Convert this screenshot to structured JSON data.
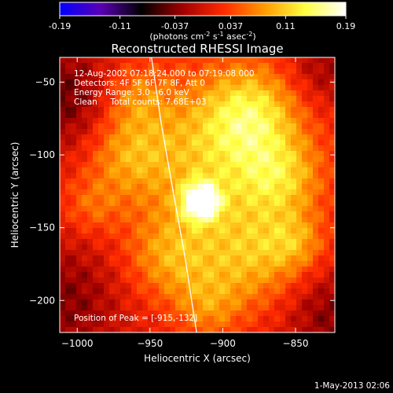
{
  "colorbar": {
    "min": -0.19,
    "max": 0.19,
    "ticks": [
      {
        "value": -0.19,
        "label": "-0.19"
      },
      {
        "value": -0.11,
        "label": "-0.11"
      },
      {
        "value": -0.037,
        "label": "-0.037"
      },
      {
        "value": 0.037,
        "label": "0.037"
      },
      {
        "value": 0.11,
        "label": "0.11"
      },
      {
        "value": 0.19,
        "label": "0.19"
      }
    ],
    "units_prefix": "(photons cm",
    "units_exp1": "-2",
    "units_mid1": " s",
    "units_exp2": "-1",
    "units_mid2": " asec",
    "units_exp3": "-2",
    "units_suffix": ")",
    "colors": [
      "#0000ff",
      "#5a00b4",
      "#000000",
      "#a00000",
      "#ff2a00",
      "#ff9a00",
      "#ffff40",
      "#ffffff"
    ]
  },
  "chart_data": {
    "type": "heatmap",
    "title": "Reconstructed RHESSI Image",
    "xlabel": "Heliocentric X (arcsec)",
    "ylabel": "Heliocentric Y (arcsec)",
    "xlim": [
      -1012,
      -823
    ],
    "ylim": [
      -222,
      -33
    ],
    "xticks": [
      {
        "value": -1000,
        "label": "−1000"
      },
      {
        "value": -950,
        "label": "−950"
      },
      {
        "value": -900,
        "label": "−900"
      },
      {
        "value": -850,
        "label": "−850"
      }
    ],
    "yticks": [
      {
        "value": -50,
        "label": "−50"
      },
      {
        "value": -100,
        "label": "−100"
      },
      {
        "value": -150,
        "label": "−150"
      },
      {
        "value": -200,
        "label": "−200"
      }
    ],
    "annotations": [
      "12-Aug-2002 07:18:24.000 to 07:19:08.000",
      "Detectors: 4F 5F 6F 7F 8F, Att 0",
      "Energy Range: 3.0 - 6.0 keV",
      "Clean     Total counts: 7.68E+03"
    ],
    "peak_label": "Position of Peak = [-915,-132]",
    "peak": {
      "x": -915,
      "y": -132
    },
    "limb_curve": [
      [
        -949,
        -33
      ],
      [
        -942,
        -80
      ],
      [
        -935,
        -120
      ],
      [
        -926,
        -170
      ],
      [
        -918,
        -222
      ]
    ],
    "sources": [
      {
        "x": -915,
        "y": -132,
        "sigma": 9,
        "amp": 0.17
      },
      {
        "x": -905,
        "y": -100,
        "sigma": 38,
        "amp": 0.09
      },
      {
        "x": -880,
        "y": -70,
        "sigma": 22,
        "amp": 0.08
      },
      {
        "x": -860,
        "y": -115,
        "sigma": 20,
        "amp": 0.07
      },
      {
        "x": -880,
        "y": -170,
        "sigma": 25,
        "amp": 0.075
      },
      {
        "x": -935,
        "y": -170,
        "sigma": 22,
        "amp": 0.07
      },
      {
        "x": -965,
        "y": -100,
        "sigma": 20,
        "amp": 0.06
      },
      {
        "x": -960,
        "y": -60,
        "sigma": 16,
        "amp": 0.05
      },
      {
        "x": -910,
        "y": -205,
        "sigma": 16,
        "amp": 0.05
      },
      {
        "x": -850,
        "y": -160,
        "sigma": 14,
        "amp": 0.05
      },
      {
        "x": -990,
        "y": -135,
        "sigma": 14,
        "amp": 0.04
      },
      {
        "x": -1010,
        "y": -60,
        "sigma": 25,
        "amp": -0.06
      },
      {
        "x": -1010,
        "y": -200,
        "sigma": 28,
        "amp": -0.05
      },
      {
        "x": -825,
        "y": -210,
        "sigma": 22,
        "amp": -0.05
      },
      {
        "x": -830,
        "y": -40,
        "sigma": 18,
        "amp": -0.04
      }
    ]
  },
  "footer": {
    "timestamp": "1-May-2013 02:06"
  }
}
